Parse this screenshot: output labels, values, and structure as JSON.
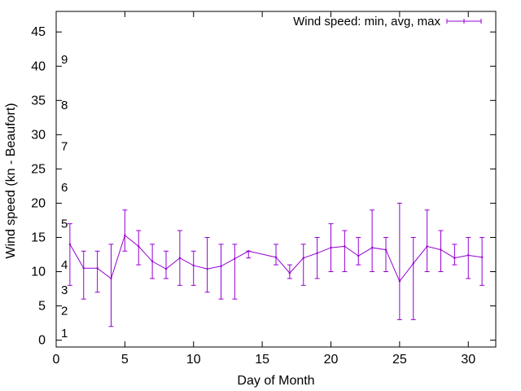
{
  "chart_data": {
    "type": "line",
    "xlabel": "Day of Month",
    "ylabel": "Wind speed (kn - Beaufort)",
    "xlim": [
      0,
      32
    ],
    "ylim": [
      -1,
      48
    ],
    "xticks": [
      0,
      5,
      10,
      15,
      20,
      25,
      30
    ],
    "yticks": [
      0,
      5,
      10,
      15,
      20,
      25,
      30,
      35,
      40,
      45
    ],
    "grid": false,
    "legend_position": "top-right",
    "series_color": "#9400d3",
    "beaufort_labels": [
      {
        "label": "1",
        "y": 1
      },
      {
        "label": "2",
        "y": 4.3
      },
      {
        "label": "3",
        "y": 7.3
      },
      {
        "label": "4",
        "y": 11
      },
      {
        "label": "5",
        "y": 17
      },
      {
        "label": "6",
        "y": 22.3
      },
      {
        "label": "7",
        "y": 28.3
      },
      {
        "label": "8",
        "y": 34.3
      },
      {
        "label": "9",
        "y": 41
      }
    ],
    "series": [
      {
        "name": "Wind speed: min, avg, max",
        "x": [
          1,
          2,
          3,
          4,
          5,
          6,
          7,
          8,
          9,
          10,
          11,
          12,
          13,
          14,
          16,
          17,
          18,
          19,
          20,
          21,
          22,
          23,
          24,
          25,
          26,
          27,
          28,
          29,
          30,
          31
        ],
        "min": [
          8,
          6,
          7,
          2,
          13,
          11,
          9,
          9,
          8,
          8,
          7,
          6,
          6,
          12,
          11,
          9,
          8,
          9,
          10,
          10,
          11,
          10,
          10,
          3,
          3,
          10,
          10,
          11,
          9,
          8
        ],
        "avg": [
          14,
          10.5,
          10.5,
          9,
          15.3,
          13.7,
          11.5,
          10.4,
          12,
          10.9,
          10.4,
          10.8,
          11.9,
          13,
          12.1,
          9.8,
          12,
          12.7,
          13.5,
          13.7,
          12.3,
          13.5,
          13.2,
          8.6,
          11.2,
          13.7,
          13.2,
          12,
          12.4,
          12.1
        ],
        "max": [
          17,
          13,
          13,
          14,
          19,
          16,
          14,
          13,
          16,
          13,
          15,
          14,
          14,
          13,
          14,
          11,
          14,
          15,
          17,
          16,
          15,
          19,
          15,
          20,
          15,
          19,
          16,
          14,
          15,
          15
        ]
      }
    ]
  }
}
